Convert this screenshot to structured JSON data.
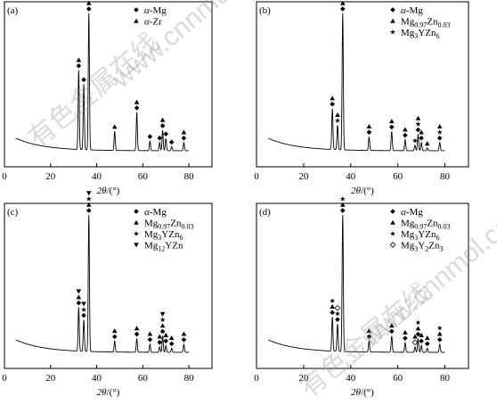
{
  "figure": {
    "xlabel": "2θ/(°)",
    "xticks": [
      "0",
      "20",
      "40",
      "60",
      "80"
    ],
    "watermarks": [
      "有色金属在线",
      "www.cnnmol.com"
    ]
  },
  "chart_data": [
    {
      "type": "line",
      "panel": "(a)",
      "xlabel": "2θ/(°)",
      "xlim": [
        0,
        90
      ],
      "legend_position": "top-right",
      "legend": [
        {
          "marker": "◆",
          "name": "α-Mg"
        },
        {
          "marker": "▲",
          "name": "α-Zr"
        }
      ],
      "peaks": [
        {
          "x": 32.2,
          "height": 0.58,
          "markers": [
            "◆",
            "▲"
          ]
        },
        {
          "x": 34.4,
          "height": 0.48,
          "markers": [
            "◆"
          ]
        },
        {
          "x": 36.6,
          "height": 1.0,
          "markers": [
            "◆",
            "▲"
          ]
        },
        {
          "x": 47.8,
          "height": 0.14,
          "markers": [
            "▲"
          ]
        },
        {
          "x": 57.4,
          "height": 0.28,
          "markers": [
            "◆",
            "▲"
          ]
        },
        {
          "x": 63.1,
          "height": 0.07,
          "markers": [
            "◆"
          ]
        },
        {
          "x": 67.3,
          "height": 0.06,
          "markers": [
            "◆"
          ]
        },
        {
          "x": 68.6,
          "height": 0.15,
          "markers": [
            "◆",
            "▲"
          ]
        },
        {
          "x": 70.0,
          "height": 0.09,
          "markers": [
            "◆"
          ]
        },
        {
          "x": 72.5,
          "height": 0.03,
          "markers": [
            "◆"
          ]
        },
        {
          "x": 77.8,
          "height": 0.06,
          "markers": [
            "◆",
            "▲"
          ]
        }
      ]
    },
    {
      "type": "line",
      "panel": "(b)",
      "xlabel": "2θ/(°)",
      "xlim": [
        0,
        90
      ],
      "legend_position": "top-right",
      "legend": [
        {
          "marker": "◆",
          "name": "α-Mg"
        },
        {
          "marker": "▲",
          "name": "Mg0.97Zn0.03"
        },
        {
          "marker": "★",
          "name": "Mg3YZn6"
        }
      ],
      "peaks": [
        {
          "x": 32.2,
          "height": 0.3,
          "markers": [
            "◆",
            "▲"
          ]
        },
        {
          "x": 34.4,
          "height": 0.18,
          "markers": [
            "★",
            "▲"
          ]
        },
        {
          "x": 36.6,
          "height": 1.0,
          "markers": [
            "◆",
            "▲",
            "★"
          ]
        },
        {
          "x": 47.8,
          "height": 0.1,
          "markers": [
            "◆",
            "▲"
          ]
        },
        {
          "x": 57.4,
          "height": 0.14,
          "markers": [
            "◆",
            "▲"
          ]
        },
        {
          "x": 63.1,
          "height": 0.08,
          "markers": [
            "◆",
            "▲"
          ]
        },
        {
          "x": 67.3,
          "height": 0.04,
          "markers": [
            "★"
          ]
        },
        {
          "x": 68.6,
          "height": 0.12,
          "markers": [
            "◆",
            "★",
            "▲"
          ]
        },
        {
          "x": 70.0,
          "height": 0.06,
          "markers": [
            "◆",
            "▲"
          ]
        },
        {
          "x": 72.5,
          "height": 0.02,
          "markers": [
            "▲"
          ]
        },
        {
          "x": 77.8,
          "height": 0.06,
          "markers": [
            "◆",
            "★",
            "▲"
          ]
        }
      ]
    },
    {
      "type": "line",
      "panel": "(c)",
      "xlabel": "2θ/(°)",
      "xlim": [
        0,
        90
      ],
      "legend_position": "top-right",
      "legend": [
        {
          "marker": "◆",
          "name": "α-Mg"
        },
        {
          "marker": "▲",
          "name": "Mg0.97Zn0.03"
        },
        {
          "marker": "★",
          "name": "Mg3YZn6"
        },
        {
          "marker": "▼",
          "name": "Mg12YZn"
        }
      ],
      "peaks": [
        {
          "x": 32.2,
          "height": 0.32,
          "markers": [
            "◆",
            "▲",
            "▼"
          ]
        },
        {
          "x": 34.4,
          "height": 0.23,
          "markers": [
            "◆",
            "★",
            "▼"
          ]
        },
        {
          "x": 36.6,
          "height": 1.0,
          "markers": [
            "◆",
            "▲",
            "★",
            "▼"
          ]
        },
        {
          "x": 47.8,
          "height": 0.08,
          "markers": [
            "◆",
            "▲"
          ]
        },
        {
          "x": 57.4,
          "height": 0.1,
          "markers": [
            "◆",
            "▲"
          ]
        },
        {
          "x": 63.1,
          "height": 0.06,
          "markers": [
            "◆",
            "▲"
          ]
        },
        {
          "x": 67.3,
          "height": 0.04,
          "markers": [
            "◆",
            "▲"
          ]
        },
        {
          "x": 68.6,
          "height": 0.12,
          "markers": [
            "◆",
            "▲",
            "★",
            "▼"
          ]
        },
        {
          "x": 70.0,
          "height": 0.05,
          "markers": [
            "◆",
            "▲"
          ]
        },
        {
          "x": 72.5,
          "height": 0.03,
          "markers": [
            "◆",
            "▲"
          ]
        },
        {
          "x": 77.8,
          "height": 0.06,
          "markers": [
            "◆",
            "▲"
          ]
        }
      ]
    },
    {
      "type": "line",
      "panel": "(d)",
      "xlabel": "2θ/(°)",
      "xlim": [
        0,
        90
      ],
      "legend_position": "top-right",
      "legend": [
        {
          "marker": "◆",
          "name": "α-Mg"
        },
        {
          "marker": "▲",
          "name": "Mg0.97Zn0.03"
        },
        {
          "marker": "★",
          "name": "Mg3YZn6"
        },
        {
          "marker": "◇",
          "name": "Mg3Y2Zn3"
        }
      ],
      "peaks": [
        {
          "x": 32.2,
          "height": 0.25,
          "markers": [
            "◆",
            "▲",
            "★"
          ]
        },
        {
          "x": 34.4,
          "height": 0.2,
          "markers": [
            "◆",
            "★",
            "◇"
          ]
        },
        {
          "x": 36.6,
          "height": 1.0,
          "markers": [
            "◆",
            "▲",
            "★"
          ]
        },
        {
          "x": 47.8,
          "height": 0.08,
          "markers": [
            "◆",
            "▲"
          ]
        },
        {
          "x": 57.4,
          "height": 0.12,
          "markers": [
            "◆",
            "▲"
          ]
        },
        {
          "x": 63.1,
          "height": 0.07,
          "markers": [
            "◆",
            "▲"
          ]
        },
        {
          "x": 67.3,
          "height": 0.04,
          "markers": [
            "◇",
            "▲"
          ]
        },
        {
          "x": 68.6,
          "height": 0.1,
          "markers": [
            "◆",
            "▲",
            "★"
          ]
        },
        {
          "x": 70.0,
          "height": 0.05,
          "markers": [
            "◆",
            "▲"
          ]
        },
        {
          "x": 72.5,
          "height": 0.03,
          "markers": [
            "◆",
            "▲"
          ]
        },
        {
          "x": 77.8,
          "height": 0.06,
          "markers": [
            "◆",
            "▲",
            "★"
          ]
        }
      ]
    }
  ]
}
